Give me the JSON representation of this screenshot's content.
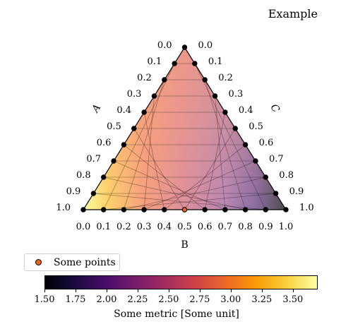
{
  "title": "Example",
  "chart_data": {
    "type": "scatter",
    "subtype": "ternary",
    "title": "Example",
    "axes": {
      "A": {
        "label": "A",
        "ticks": [
          "0.0",
          "0.1",
          "0.2",
          "0.3",
          "0.4",
          "0.5",
          "0.6",
          "0.7",
          "0.8",
          "0.9",
          "1.0"
        ]
      },
      "B": {
        "label": "B",
        "ticks": [
          "0.0",
          "0.1",
          "0.2",
          "0.3",
          "0.4",
          "0.5",
          "0.6",
          "0.7",
          "0.8",
          "0.9",
          "1.0"
        ]
      },
      "C": {
        "label": "C",
        "ticks": [
          "0.0",
          "0.1",
          "0.2",
          "0.3",
          "0.4",
          "0.5",
          "0.6",
          "0.7",
          "0.8",
          "0.9",
          "1.0"
        ]
      }
    },
    "grid": true,
    "background_colormap": "inferno",
    "series": [
      {
        "name": "Some points",
        "color": "#e8641b",
        "points": [
          {
            "A": 0.0,
            "B": 0.5,
            "C": 0.5
          }
        ]
      }
    ],
    "edge_points_color": "#000000",
    "legend": {
      "placement": "lower-left",
      "entries": [
        "Some points"
      ]
    },
    "colorbar": {
      "label": "Some metric [Some unit]",
      "range": [
        1.5,
        3.7
      ],
      "ticks": [
        "1.50",
        "1.75",
        "2.00",
        "2.25",
        "2.50",
        "2.75",
        "3.00",
        "3.25",
        "3.50"
      ],
      "colormap": "inferno"
    }
  }
}
